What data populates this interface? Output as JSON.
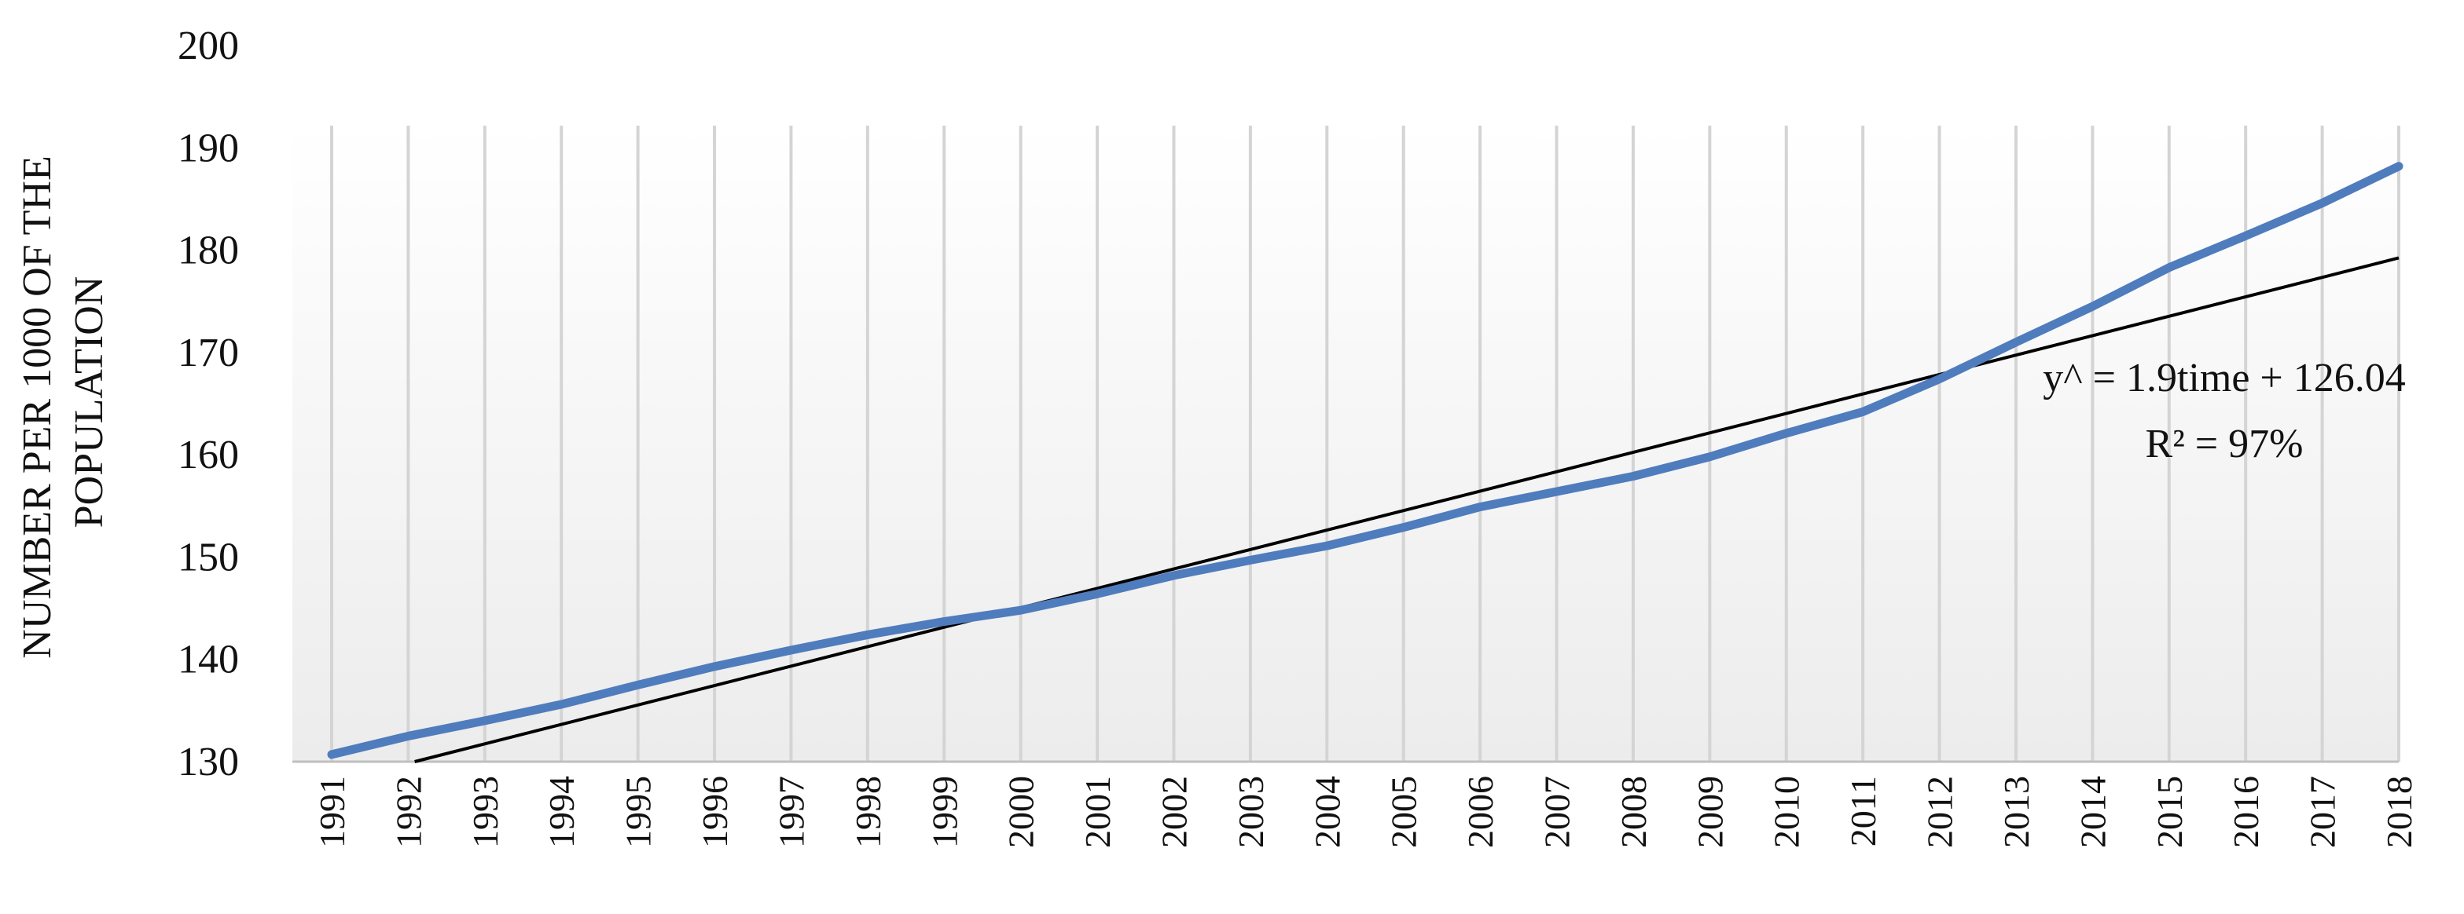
{
  "chart_data": {
    "type": "line",
    "title": "",
    "xlabel": "",
    "ylabel_lines": [
      "NUMBER PER 1000 OF THE",
      "POPULATION"
    ],
    "ylim": [
      130,
      200
    ],
    "yticks": [
      130,
      140,
      150,
      160,
      170,
      180,
      190,
      200
    ],
    "grid": "vertical",
    "x": [
      "1991",
      "1992",
      "1993",
      "1994",
      "1995",
      "1996",
      "1997",
      "1998",
      "1999",
      "2000",
      "2001",
      "2002",
      "2003",
      "2004",
      "2005",
      "2006",
      "2007",
      "2008",
      "2009",
      "2010",
      "2011",
      "2012",
      "2013",
      "2014",
      "2015",
      "2016",
      "2017",
      "2018"
    ],
    "series": [
      {
        "values": [
          130.7,
          132.5,
          134.0,
          135.6,
          137.5,
          139.3,
          140.9,
          142.4,
          143.7,
          144.8,
          146.4,
          148.2,
          149.7,
          151.1,
          152.9,
          154.9,
          156.4,
          157.9,
          159.8,
          162.1,
          164.2,
          167.4,
          171.0,
          174.5,
          178.3,
          181.4,
          184.6,
          188.2
        ],
        "color": "#4f7cbd"
      }
    ],
    "trendline": {
      "type": "linear",
      "slope": 1.9,
      "intercept": 126.04,
      "color": "#000000",
      "equation_label": "y^ = 1.9time + 126.04",
      "r2_label": "R² = 97%"
    }
  }
}
